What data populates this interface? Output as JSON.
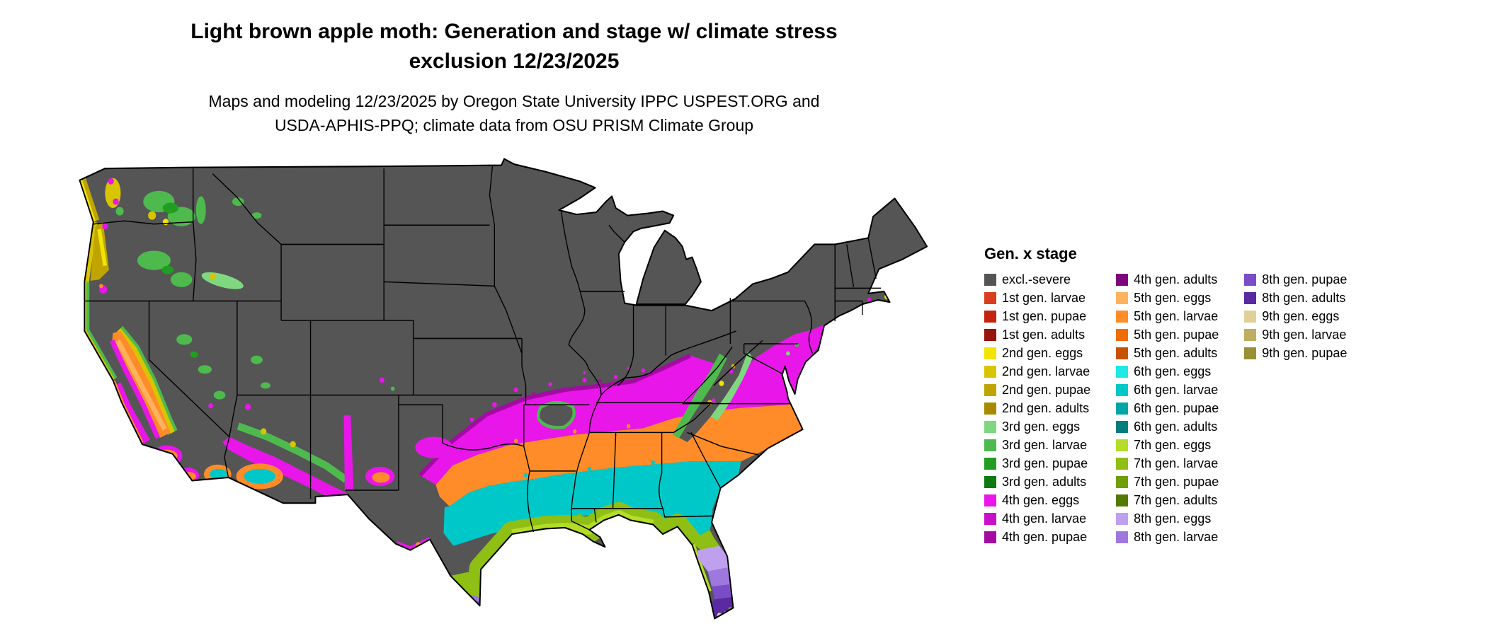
{
  "title": {
    "line1": "Light brown apple moth: Generation and stage w/ climate stress",
    "line2": "exclusion 12/23/2025"
  },
  "subtitle": {
    "line1": "Maps and modeling 12/23/2025 by Oregon State University IPPC USPEST.ORG and",
    "line2": "USDA-APHIS-PPQ; climate data from OSU PRISM Climate Group"
  },
  "legend": {
    "title": "Gen. x stage",
    "columns": [
      [
        {
          "label": "excl.-severe",
          "color": "excl"
        },
        {
          "label": "1st gen. larvae",
          "color": "g1_larvae"
        },
        {
          "label": "1st gen. pupae",
          "color": "g1_pupae"
        },
        {
          "label": "1st gen. adults",
          "color": "g1_adults"
        },
        {
          "label": "2nd gen. eggs",
          "color": "g2_eggs"
        },
        {
          "label": "2nd gen. larvae",
          "color": "g2_larvae"
        },
        {
          "label": "2nd gen. pupae",
          "color": "g2_pupae"
        },
        {
          "label": "2nd gen. adults",
          "color": "g2_adults"
        },
        {
          "label": "3rd gen. eggs",
          "color": "g3_eggs"
        },
        {
          "label": "3rd gen. larvae",
          "color": "g3_larvae"
        },
        {
          "label": "3rd gen. pupae",
          "color": "g3_pupae"
        },
        {
          "label": "3rd gen. adults",
          "color": "g3_adults"
        },
        {
          "label": "4th gen. eggs",
          "color": "g4_eggs"
        },
        {
          "label": "4th gen. larvae",
          "color": "g4_larvae"
        },
        {
          "label": "4th gen. pupae",
          "color": "g4_pupae"
        }
      ],
      [
        {
          "label": "4th gen. adults",
          "color": "g4_adults"
        },
        {
          "label": "5th gen. eggs",
          "color": "g5_eggs"
        },
        {
          "label": "5th gen. larvae",
          "color": "g5_larvae"
        },
        {
          "label": "5th gen. pupae",
          "color": "g5_pupae"
        },
        {
          "label": "5th gen. adults",
          "color": "g5_adults"
        },
        {
          "label": "6th gen. eggs",
          "color": "g6_eggs"
        },
        {
          "label": "6th gen. larvae",
          "color": "g6_larvae"
        },
        {
          "label": "6th gen. pupae",
          "color": "g6_pupae"
        },
        {
          "label": "6th gen. adults",
          "color": "g6_adults"
        },
        {
          "label": "7th gen. eggs",
          "color": "g7_eggs"
        },
        {
          "label": "7th gen. larvae",
          "color": "g7_larvae"
        },
        {
          "label": "7th gen. pupae",
          "color": "g7_pupae"
        },
        {
          "label": "7th gen. adults",
          "color": "g7_adults"
        },
        {
          "label": "8th gen. eggs",
          "color": "g8_eggs"
        },
        {
          "label": "8th gen. larvae",
          "color": "g8_larvae"
        }
      ],
      [
        {
          "label": "8th gen. pupae",
          "color": "g8_pupae"
        },
        {
          "label": "8th gen. adults",
          "color": "g8_adults"
        },
        {
          "label": "9th gen. eggs",
          "color": "g9_eggs"
        },
        {
          "label": "9th gen. larvae",
          "color": "g9_larvae"
        },
        {
          "label": "9th gen. pupae",
          "color": "g9_pupae"
        }
      ]
    ]
  },
  "colors": {
    "excl": "#555555",
    "g1_larvae": "#d93f1f",
    "g1_pupae": "#c32410",
    "g1_adults": "#96150c",
    "g2_eggs": "#f2e400",
    "g2_larvae": "#d9c400",
    "g2_pupae": "#c0a500",
    "g2_adults": "#a88a00",
    "g3_eggs": "#7fd87f",
    "g3_larvae": "#4eba4e",
    "g3_pupae": "#219e21",
    "g3_adults": "#107a10",
    "g4_eggs": "#e816e8",
    "g4_larvae": "#cb10cb",
    "g4_pupae": "#a30ba3",
    "g4_adults": "#7d067d",
    "g5_eggs": "#ffb25e",
    "g5_larvae": "#ff8c28",
    "g5_pupae": "#ef6c00",
    "g5_adults": "#c65200",
    "g6_eggs": "#1fe8e8",
    "g6_larvae": "#00c8c8",
    "g6_pupae": "#00a5a5",
    "g6_adults": "#007d7d",
    "g7_eggs": "#b4dc28",
    "g7_larvae": "#8fbe14",
    "g7_pupae": "#6f9e05",
    "g7_adults": "#527a00",
    "g8_eggs": "#bfa0ee",
    "g8_larvae": "#9e78de",
    "g8_pupae": "#7b4cc8",
    "g8_adults": "#5a2aa0",
    "g9_eggs": "#e0d098",
    "g9_larvae": "#bfae60",
    "g9_pupae": "#999036"
  }
}
